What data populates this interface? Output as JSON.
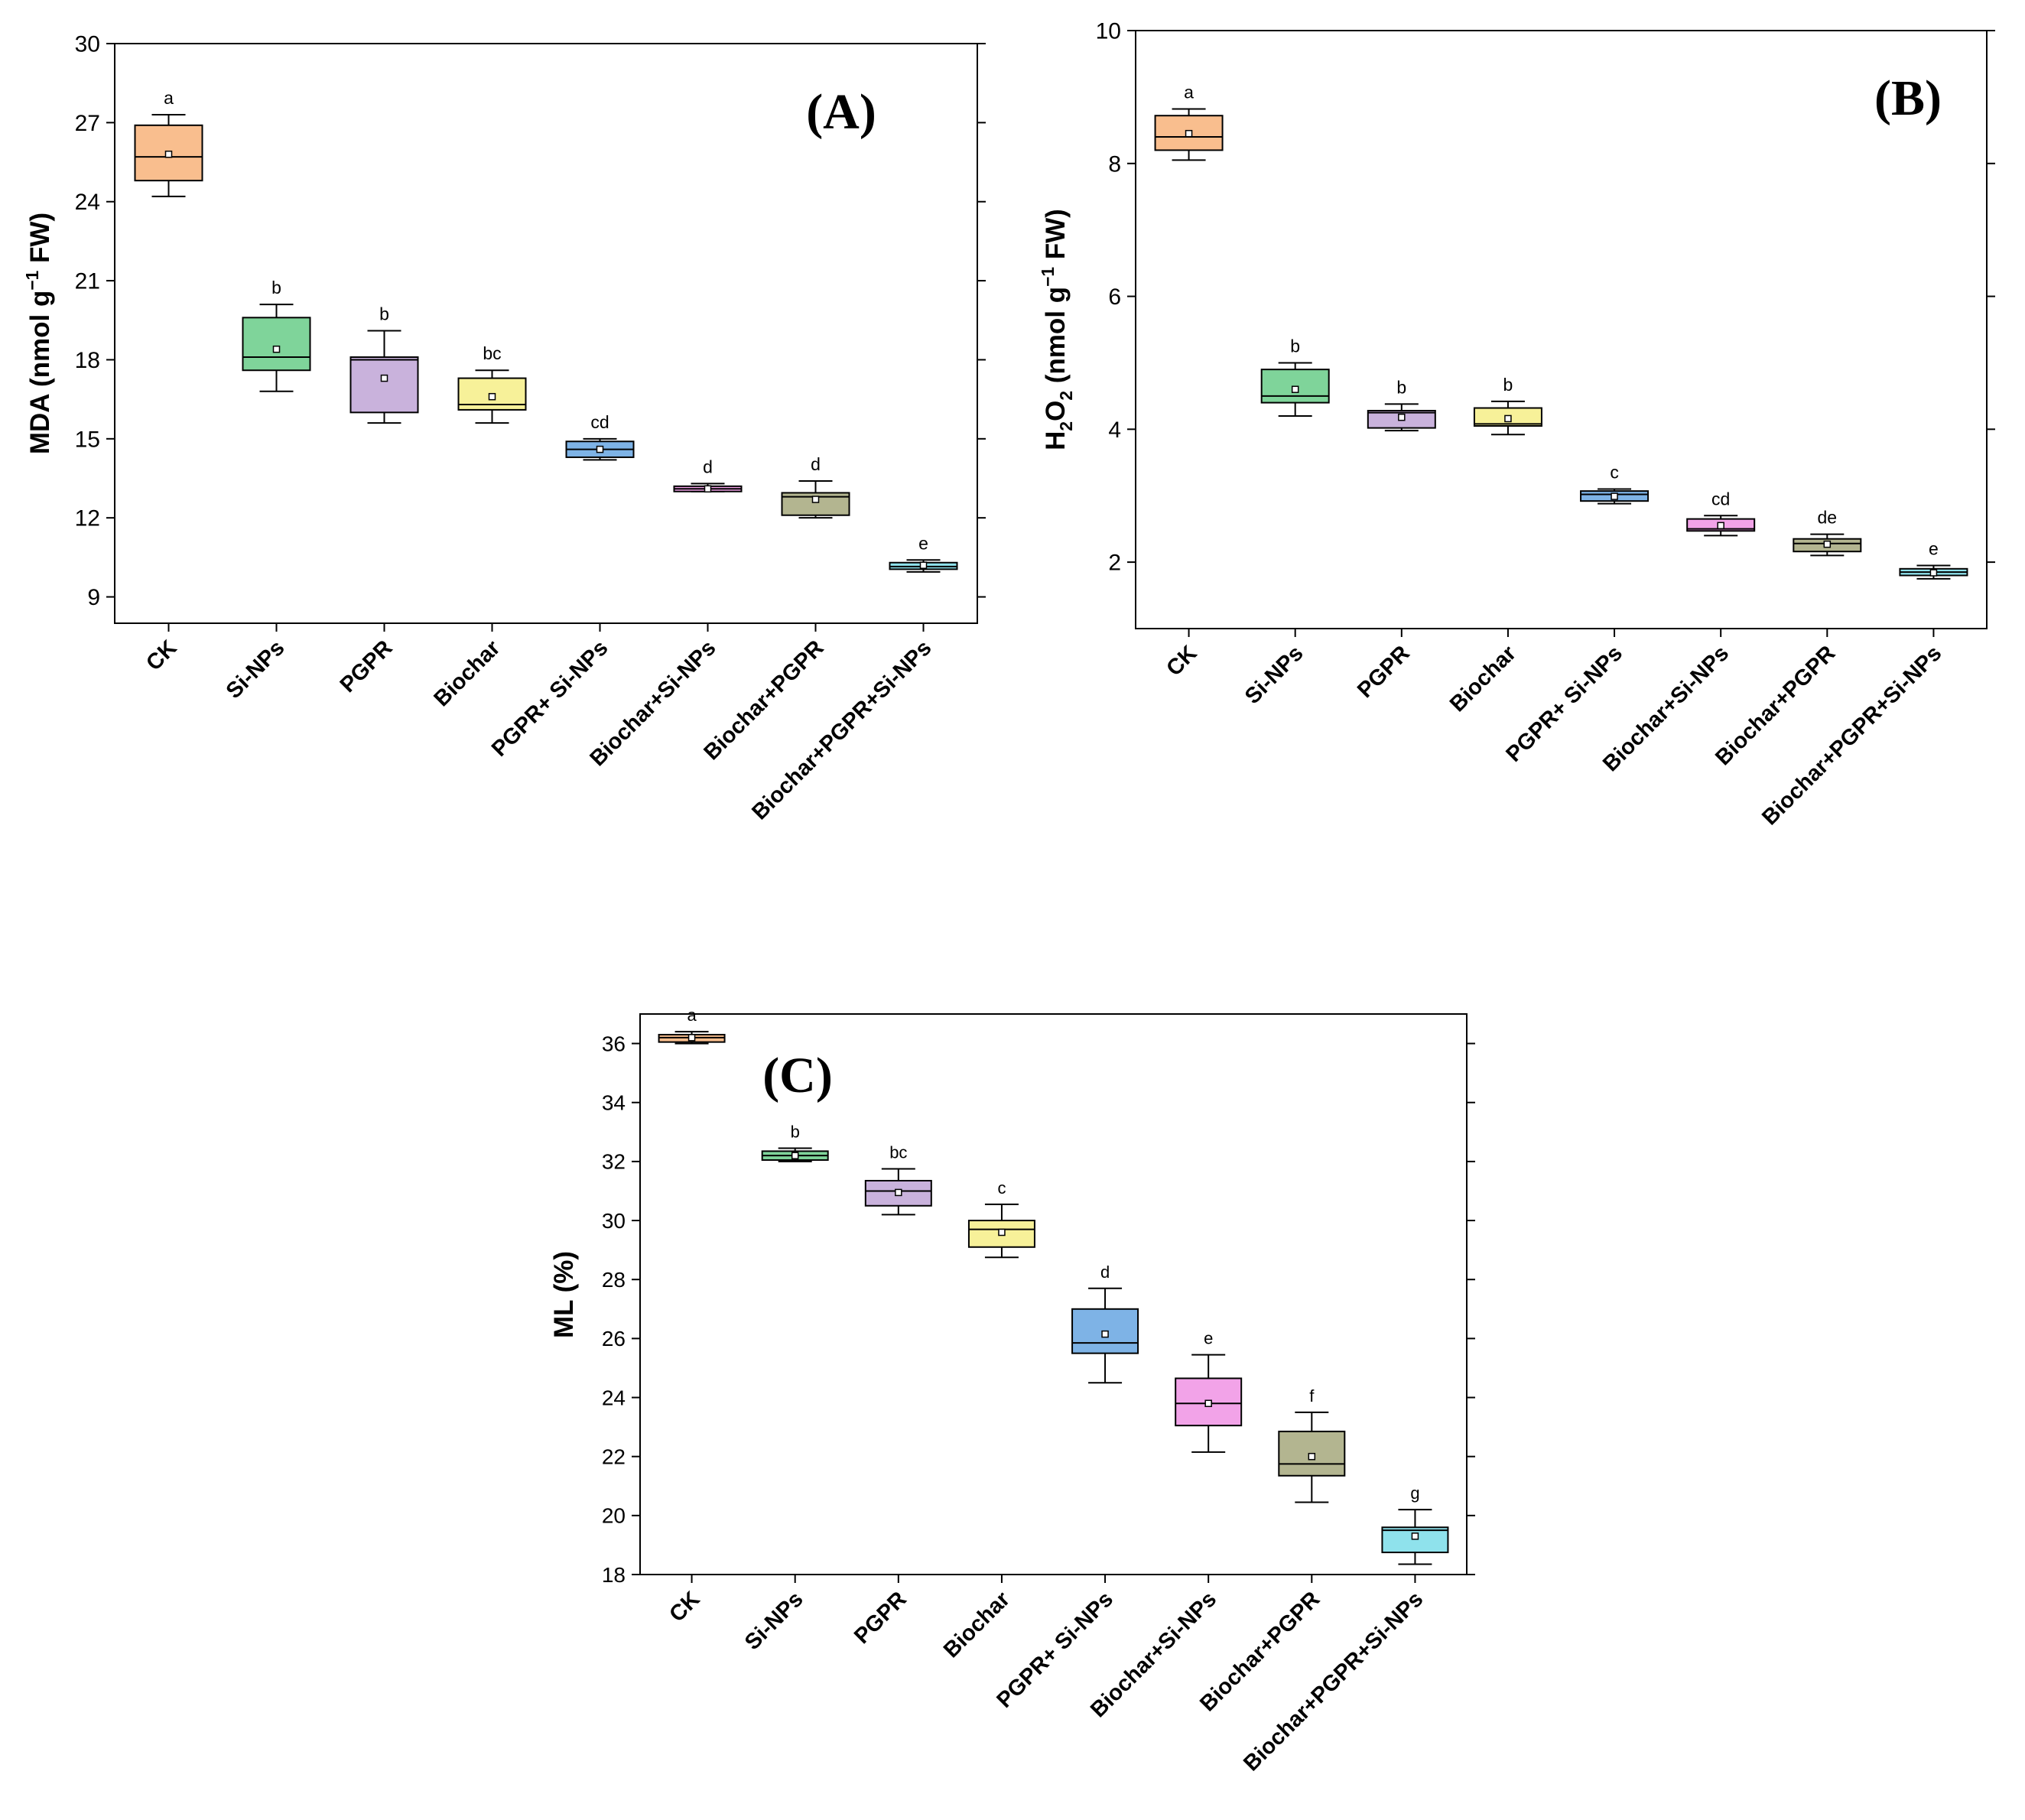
{
  "figure": {
    "background": "#ffffff"
  },
  "colors": {
    "CK": "#f9be8e",
    "Si-NPs": "#7fd49a",
    "PGPR": "#c9b2dc",
    "Biochar": "#f7f199",
    "PGPR+ Si-NPs": "#7eb3e6",
    "Biochar+Si-NPs": "#f2a3e8",
    "Biochar+PGPR": "#b3b590",
    "Biochar+PGPR+Si-NPs": "#8fe2ec"
  },
  "chart_data": [
    {
      "type": "box",
      "panel_label": "(A)",
      "ylabel": "MDA (nmol g⁻¹ FW)",
      "ylabel_parts": [
        "MDA (nmol g",
        "−1",
        " FW)"
      ],
      "ylim": [
        8,
        30
      ],
      "yticks": [
        9,
        12,
        15,
        18,
        21,
        24,
        27,
        30
      ],
      "ytick_labels": [
        "9",
        "12",
        "15",
        "18",
        "21",
        "24",
        "27",
        "30"
      ],
      "categories": [
        "CK",
        "Si-NPs",
        "PGPR",
        "Biochar",
        "PGPR+ Si-NPs",
        "Biochar+Si-NPs",
        "Biochar+PGPR",
        "Biochar+PGPR+Si-NPs"
      ],
      "boxes": [
        {
          "min": 24.2,
          "q1": 24.8,
          "median": 25.7,
          "q3": 26.9,
          "max": 27.3,
          "mean": 25.8,
          "letter": "a"
        },
        {
          "min": 16.8,
          "q1": 17.6,
          "median": 18.1,
          "q3": 19.6,
          "max": 20.1,
          "mean": 18.4,
          "letter": "b"
        },
        {
          "min": 15.6,
          "q1": 16.0,
          "median": 18.0,
          "q3": 18.1,
          "max": 19.1,
          "mean": 17.3,
          "letter": "b"
        },
        {
          "min": 15.6,
          "q1": 16.1,
          "median": 16.3,
          "q3": 17.3,
          "max": 17.6,
          "mean": 16.6,
          "letter": "bc"
        },
        {
          "min": 14.2,
          "q1": 14.3,
          "median": 14.6,
          "q3": 14.9,
          "max": 15.0,
          "mean": 14.6,
          "letter": "cd"
        },
        {
          "min": 13.0,
          "q1": 13.0,
          "median": 13.1,
          "q3": 13.2,
          "max": 13.3,
          "mean": 13.1,
          "letter": "d"
        },
        {
          "min": 12.0,
          "q1": 12.1,
          "median": 12.8,
          "q3": 12.95,
          "max": 13.4,
          "mean": 12.7,
          "letter": "d"
        },
        {
          "min": 9.95,
          "q1": 10.05,
          "median": 10.15,
          "q3": 10.3,
          "max": 10.4,
          "mean": 10.2,
          "letter": "e"
        }
      ]
    },
    {
      "type": "box",
      "panel_label": "(B)",
      "ylabel": "H₂O₂ (nmol g⁻¹ FW)",
      "ylabel_parts": [
        "H",
        "2",
        "O",
        "2",
        " (nmol g",
        "−1",
        " FW)"
      ],
      "ylim": [
        1,
        10
      ],
      "yticks": [
        2,
        4,
        6,
        8,
        10
      ],
      "ytick_labels": [
        "2",
        "4",
        "6",
        "8",
        "10"
      ],
      "categories": [
        "CK",
        "Si-NPs",
        "PGPR",
        "Biochar",
        "PGPR+ Si-NPs",
        "Biochar+Si-NPs",
        "Biochar+PGPR",
        "Biochar+PGPR+Si-NPs"
      ],
      "boxes": [
        {
          "min": 8.05,
          "q1": 8.2,
          "median": 8.4,
          "q3": 8.72,
          "max": 8.82,
          "mean": 8.45,
          "letter": "a"
        },
        {
          "min": 4.2,
          "q1": 4.4,
          "median": 4.5,
          "q3": 4.9,
          "max": 5.0,
          "mean": 4.6,
          "letter": "b"
        },
        {
          "min": 3.98,
          "q1": 4.02,
          "median": 4.25,
          "q3": 4.28,
          "max": 4.38,
          "mean": 4.18,
          "letter": "b"
        },
        {
          "min": 3.92,
          "q1": 4.05,
          "median": 4.08,
          "q3": 4.32,
          "max": 4.42,
          "mean": 4.16,
          "letter": "b"
        },
        {
          "min": 2.88,
          "q1": 2.92,
          "median": 3.02,
          "q3": 3.07,
          "max": 3.1,
          "mean": 2.99,
          "letter": "c"
        },
        {
          "min": 2.4,
          "q1": 2.47,
          "median": 2.5,
          "q3": 2.65,
          "max": 2.7,
          "mean": 2.55,
          "letter": "cd"
        },
        {
          "min": 2.1,
          "q1": 2.16,
          "median": 2.28,
          "q3": 2.35,
          "max": 2.42,
          "mean": 2.27,
          "letter": "de"
        },
        {
          "min": 1.75,
          "q1": 1.8,
          "median": 1.85,
          "q3": 1.9,
          "max": 1.95,
          "mean": 1.84,
          "letter": "e"
        }
      ]
    },
    {
      "type": "box",
      "panel_label": "(C)",
      "ylabel": "ML (%)",
      "ylabel_parts": [
        "ML (%)"
      ],
      "ylim": [
        18,
        37
      ],
      "yticks": [
        18,
        20,
        22,
        24,
        26,
        28,
        30,
        32,
        34,
        36
      ],
      "ytick_labels": [
        "18",
        "20",
        "22",
        "24",
        "26",
        "28",
        "30",
        "32",
        "34",
        "36"
      ],
      "categories": [
        "CK",
        "Si-NPs",
        "PGPR",
        "Biochar",
        "PGPR+ Si-NPs",
        "Biochar+Si-NPs",
        "Biochar+PGPR",
        "Biochar+PGPR+Si-NPs"
      ],
      "boxes": [
        {
          "min": 36.0,
          "q1": 36.05,
          "median": 36.2,
          "q3": 36.3,
          "max": 36.4,
          "mean": 36.2,
          "letter": "a"
        },
        {
          "min": 32.0,
          "q1": 32.05,
          "median": 32.2,
          "q3": 32.35,
          "max": 32.45,
          "mean": 32.2,
          "letter": "b"
        },
        {
          "min": 30.2,
          "q1": 30.5,
          "median": 31.0,
          "q3": 31.35,
          "max": 31.75,
          "mean": 30.95,
          "letter": "bc"
        },
        {
          "min": 28.75,
          "q1": 29.1,
          "median": 29.7,
          "q3": 30.0,
          "max": 30.55,
          "mean": 29.6,
          "letter": "c"
        },
        {
          "min": 24.5,
          "q1": 25.5,
          "median": 25.85,
          "q3": 27.0,
          "max": 27.7,
          "mean": 26.15,
          "letter": "d"
        },
        {
          "min": 22.15,
          "q1": 23.05,
          "median": 23.8,
          "q3": 24.65,
          "max": 25.45,
          "mean": 23.8,
          "letter": "e"
        },
        {
          "min": 20.45,
          "q1": 21.35,
          "median": 21.75,
          "q3": 22.85,
          "max": 23.5,
          "mean": 22.0,
          "letter": "f"
        },
        {
          "min": 18.35,
          "q1": 18.75,
          "median": 19.5,
          "q3": 19.6,
          "max": 20.2,
          "mean": 19.3,
          "letter": "g"
        }
      ]
    }
  ]
}
